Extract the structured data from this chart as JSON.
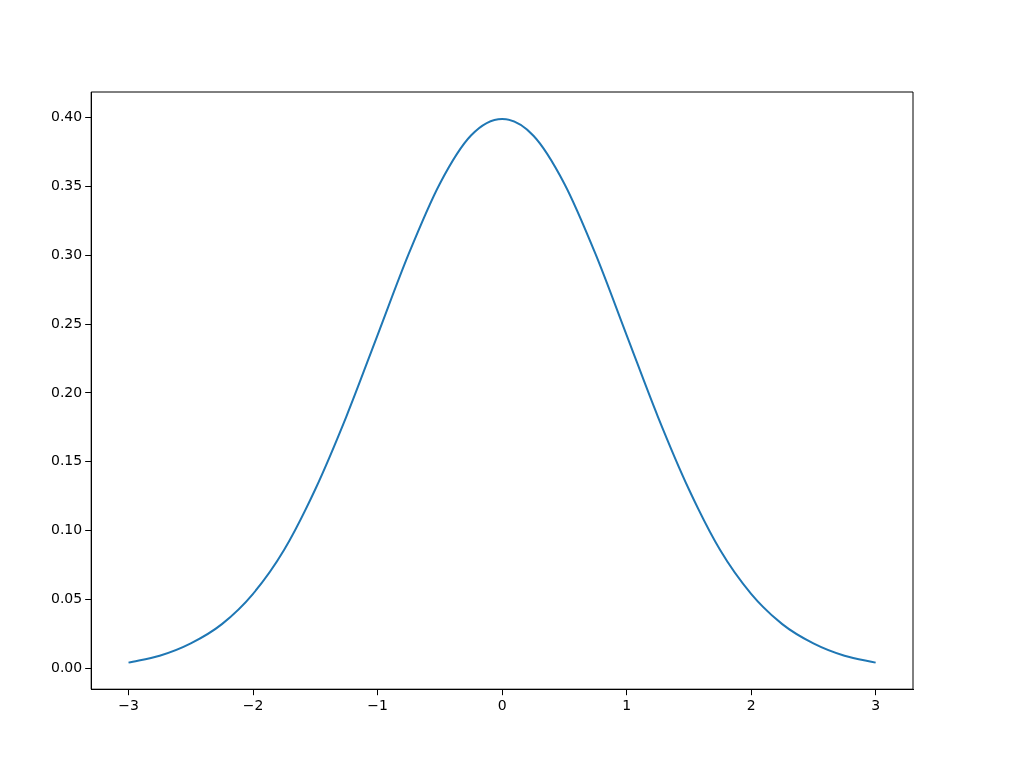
{
  "chart_data": {
    "type": "line",
    "x": [
      -3,
      -2.75,
      -2.5,
      -2.25,
      -2,
      -1.75,
      -1.5,
      -1.25,
      -1,
      -0.75,
      -0.5,
      -0.25,
      0,
      0.25,
      0.5,
      0.75,
      1,
      1.25,
      1.5,
      1.75,
      2,
      2.25,
      2.5,
      2.75,
      3
    ],
    "series": [
      {
        "color": "#1f77b4",
        "values": [
          0.004,
          0.009,
          0.018,
          0.032,
          0.054,
          0.086,
          0.13,
          0.183,
          0.242,
          0.301,
          0.352,
          0.387,
          0.399,
          0.387,
          0.352,
          0.301,
          0.242,
          0.183,
          0.13,
          0.086,
          0.054,
          0.032,
          0.018,
          0.009,
          0.004
        ]
      }
    ],
    "xlim": [
      -3.3,
      3.3
    ],
    "ylim": [
      -0.0153,
      0.4186
    ],
    "xticks": [
      {
        "value": -3,
        "label": "−3"
      },
      {
        "value": -2,
        "label": "−2"
      },
      {
        "value": -1,
        "label": "−1"
      },
      0,
      1,
      2,
      3
    ],
    "yticks": [
      {
        "value": 0,
        "label": "0.00"
      },
      {
        "value": 0.05,
        "label": "0.05"
      },
      {
        "value": 0.1,
        "label": "0.10"
      },
      {
        "value": 0.15,
        "label": "0.15"
      },
      {
        "value": 0.2,
        "label": "0.20"
      },
      {
        "value": 0.25,
        "label": "0.25"
      },
      {
        "value": 0.3,
        "label": "0.30"
      },
      {
        "value": 0.35,
        "label": "0.35"
      },
      {
        "value": 0.4,
        "label": "0.40"
      }
    ],
    "marker": "none",
    "line_style": "solid",
    "legend": false
  }
}
